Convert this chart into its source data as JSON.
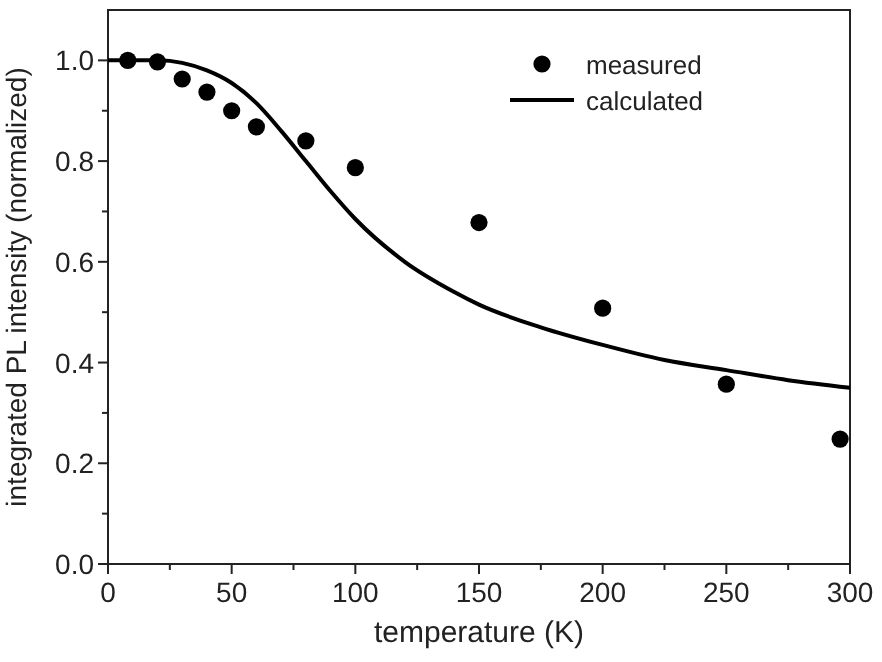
{
  "chart_data": {
    "type": "scatter",
    "xlabel": "temperature (K)",
    "ylabel": "integrated PL intensity (normalized)",
    "xlim": [
      0,
      300
    ],
    "ylim": [
      0,
      1.1
    ],
    "xticks": [
      0,
      {
        "value": 25,
        "label": null
      },
      50,
      {
        "value": 75,
        "label": null
      },
      100,
      {
        "value": 125,
        "label": null
      },
      150,
      {
        "value": 175,
        "label": null
      },
      200,
      {
        "value": 225,
        "label": null
      },
      250,
      {
        "value": 275,
        "label": null
      },
      300
    ],
    "yticks": [
      "0.0",
      {
        "value": 0.1,
        "label": null
      },
      {
        "value": 0.2,
        "label": "0.2"
      },
      {
        "value": 0.3,
        "label": null
      },
      {
        "value": 0.4,
        "label": "0.4"
      },
      {
        "value": 0.5,
        "label": null
      },
      {
        "value": 0.6,
        "label": "0.6"
      },
      {
        "value": 0.7,
        "label": null
      },
      {
        "value": 0.8,
        "label": "0.8"
      },
      {
        "value": 0.9,
        "label": null
      },
      {
        "value": 1.0,
        "label": "1.0"
      }
    ],
    "legend": "top right",
    "grid": false,
    "series": [
      {
        "name": "measured",
        "type": "scatter",
        "marker": "circle",
        "color": "#000000",
        "x": [
          8,
          20,
          30,
          40,
          50,
          60,
          80,
          100,
          150,
          200,
          250,
          296
        ],
        "values": [
          1.0,
          0.997,
          0.963,
          0.937,
          0.9,
          0.868,
          0.84,
          0.787,
          0.678,
          0.508,
          0.357,
          0.248
        ]
      },
      {
        "name": "calculated",
        "type": "line",
        "marker": "none",
        "line_style": "solid",
        "color": "#000000",
        "x": [
          0,
          20,
          30,
          40,
          50,
          60,
          70,
          80,
          90,
          100,
          120,
          140,
          150,
          175,
          200,
          225,
          250,
          275,
          300
        ],
        "values": [
          1.0,
          1.0,
          0.995,
          0.98,
          0.955,
          0.915,
          0.86,
          0.8,
          0.74,
          0.685,
          0.6,
          0.54,
          0.515,
          0.47,
          0.435,
          0.405,
          0.385,
          0.365,
          0.35
        ]
      }
    ]
  }
}
